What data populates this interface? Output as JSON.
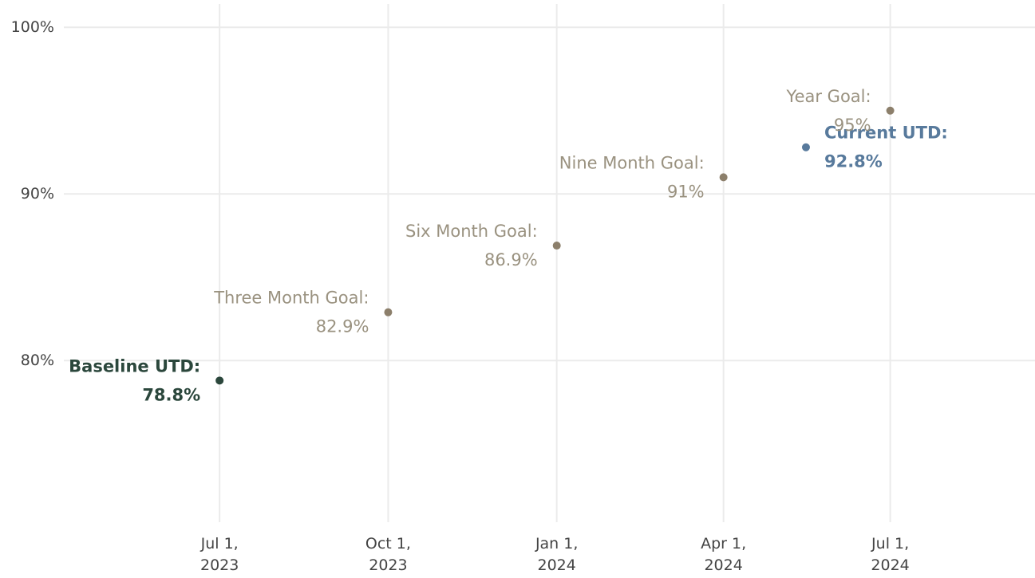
{
  "chart_data": {
    "type": "scatter",
    "x": [
      "2023-07-01",
      "2023-10-01",
      "2024-01-01",
      "2024-04-01",
      "2024-05-16",
      "2024-07-01"
    ],
    "values": [
      78.8,
      82.9,
      86.9,
      91,
      92.8,
      95
    ],
    "value_labels": [
      "78.8%",
      "82.9%",
      "86.9%",
      "91%",
      "92.8%",
      "95%"
    ],
    "labels": [
      "Baseline UTD:",
      "Three Month Goal:",
      "Six Month Goal:",
      "Nine Month Goal:",
      "Current UTD:",
      "Year Goal:"
    ],
    "colors": [
      "#2b473c",
      "#8c7f6b",
      "#8c7f6b",
      "#8c7f6b",
      "#587a9c",
      "#8c7f6b"
    ],
    "label_colors": [
      "#2b473c",
      "#9a9280",
      "#9a9280",
      "#9a9280",
      "#587a9c",
      "#9a9280"
    ],
    "bold": [
      true,
      false,
      false,
      false,
      true,
      false
    ],
    "xlim": [
      "2023-04-07",
      "2024-09-18"
    ],
    "xticks": [
      {
        "value": "2023-07-01",
        "label": "Jul 1, 2023"
      },
      {
        "value": "2023-10-01",
        "label": "Oct 1, 2023"
      },
      {
        "value": "2024-01-01",
        "label": "Jan 1, 2024"
      },
      {
        "value": "2024-04-01",
        "label": "Apr 1, 2024"
      },
      {
        "value": "2024-07-01",
        "label": "Jul 1, 2024"
      }
    ],
    "ylim": [
      70.3,
      101.4
    ],
    "yticks": [
      {
        "value": 80,
        "label": "80%"
      },
      {
        "value": 90,
        "label": "90%"
      },
      {
        "value": 100,
        "label": "100%"
      }
    ],
    "grid": true
  }
}
